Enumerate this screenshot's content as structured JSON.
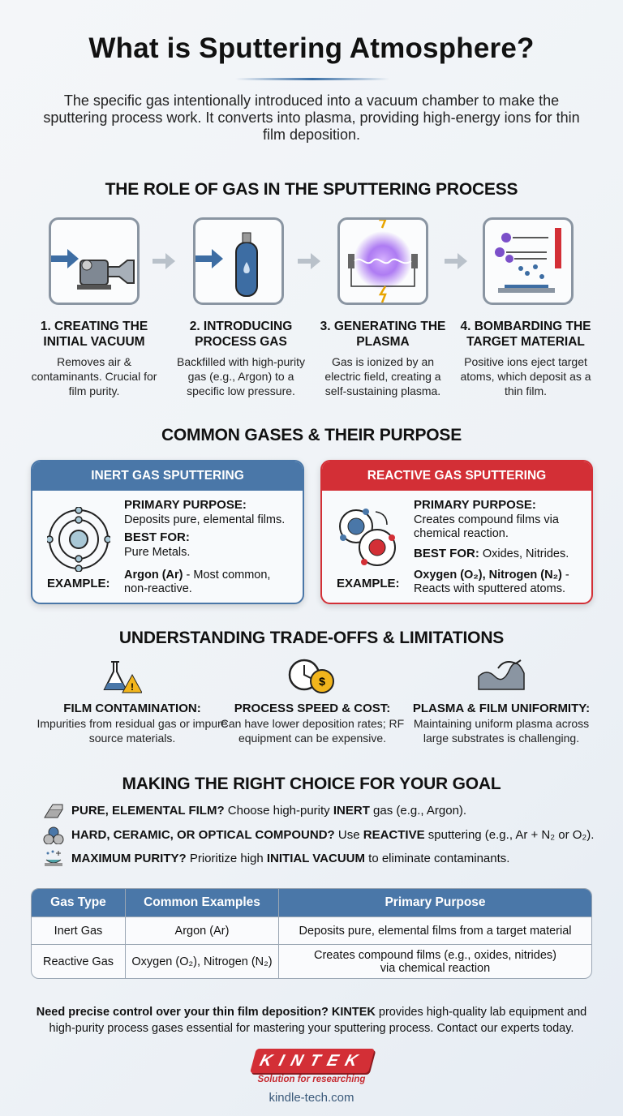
{
  "title": "What is Sputtering Atmosphere?",
  "intro": "The specific gas intentionally introduced into a vacuum chamber to make the sputtering process work. It converts into plasma, providing high-energy ions for thin film deposition.",
  "role": {
    "heading": "THE ROLE OF GAS IN THE SPUTTERING PROCESS",
    "steps": [
      {
        "title": "1. CREATING THE INITIAL VACUUM",
        "desc": "Removes air & contaminants. Crucial for film purity.",
        "icon": "vacuum-pump-icon"
      },
      {
        "title": "2. INTRODUCING PROCESS GAS",
        "desc": "Backfilled with high-purity gas (e.g., Argon) to a specific low pressure.",
        "icon": "gas-cylinder-icon"
      },
      {
        "title": "3. GENERATING THE PLASMA",
        "desc": "Gas is ionized by an electric field, creating a self-sustaining plasma.",
        "icon": "plasma-icon"
      },
      {
        "title": "4. BOMBARDING THE TARGET MATERIAL",
        "desc": "Positive ions eject target atoms, which deposit as a thin film.",
        "icon": "ion-bombardment-icon"
      }
    ]
  },
  "gases": {
    "heading": "COMMON GASES & THEIR PURPOSE",
    "inert": {
      "header": "INERT GAS SPUTTERING",
      "purpose_label": "PRIMARY PURPOSE:",
      "purpose": "Deposits pure, elemental films.",
      "best_label": "BEST FOR:",
      "best": "Pure Metals.",
      "example_label": "EXAMPLE:",
      "example_bold": "Argon (Ar)",
      "example_rest": " - Most common, non-reactive.",
      "color": "#4a77a8"
    },
    "reactive": {
      "header": "REACTIVE GAS SPUTTERING",
      "purpose_label": "PRIMARY PURPOSE:",
      "purpose": "Creates compound films via chemical reaction.",
      "best_label": "BEST FOR:",
      "best": " Oxides, Nitrides.",
      "example_label": "EXAMPLE:",
      "example_bold": "Oxygen (O₂), Nitrogen (N₂)",
      "example_rest": " - Reacts with sputtered atoms.",
      "color": "#d32f36"
    }
  },
  "tradeoffs": {
    "heading": "UNDERSTANDING TRADE-OFFS & LIMITATIONS",
    "items": [
      {
        "title": "FILM CONTAMINATION:",
        "desc": "Impurities from residual gas or impure source materials.",
        "icon": "flask-warning-icon"
      },
      {
        "title": "PROCESS SPEED & COST:",
        "desc": "Can have lower deposition rates; RF equipment can be expensive.",
        "icon": "clock-coin-icon"
      },
      {
        "title": "PLASMA & FILM UNIFORMITY:",
        "desc": "Maintaining uniform plasma across large substrates is challenging.",
        "icon": "uneven-surface-icon"
      }
    ]
  },
  "choice": {
    "heading": "MAKING THE RIGHT CHOICE FOR YOUR GOAL",
    "items": [
      {
        "q": "PURE, ELEMENTAL FILM?",
        "a1": " Choose high-purity ",
        "b": "INERT",
        "a2": " gas (e.g., Argon).",
        "icon": "metal-bar-icon"
      },
      {
        "q": "HARD, CERAMIC, OR OPTICAL COMPOUND?",
        "a1": " Use ",
        "b": "REACTIVE",
        "a2": " sputtering (e.g., Ar + N₂ or O₂).",
        "icon": "compound-icon"
      },
      {
        "q": "MAXIMUM PURITY?",
        "a1": " Prioritize high ",
        "b": "INITIAL VACUUM",
        "a2": " to eliminate contaminants.",
        "icon": "clean-substrate-icon"
      }
    ]
  },
  "table": {
    "headers": [
      "Gas Type",
      "Common Examples",
      "Primary Purpose"
    ],
    "rows": [
      [
        "Inert Gas",
        "Argon (Ar)",
        "Deposits pure, elemental films from a target material"
      ],
      [
        "Reactive Gas",
        "Oxygen (O₂), Nitrogen (N₂)",
        "Creates compound films (e.g., oxides, nitrides) via chemical reaction"
      ]
    ]
  },
  "footer": {
    "cta_bold1": "Need precise control over your thin film deposition? KINTEK",
    "cta_rest": " provides high-quality lab equipment and high-purity process gases essential for mastering your sputtering process. Contact our experts today.",
    "logo": "KINTEK",
    "slogan": "Solution for researching",
    "url": "kindle-tech.com"
  }
}
